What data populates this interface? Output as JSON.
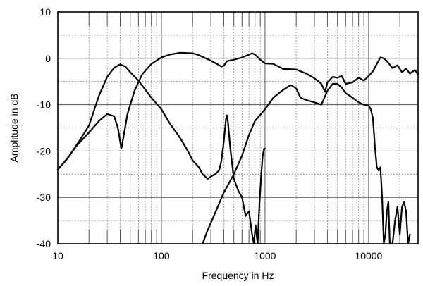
{
  "chart_data": {
    "type": "line",
    "title": "",
    "xlabel": "Frequency in Hz",
    "ylabel": "Amplitude in dB",
    "x_scale": "log",
    "xlim": [
      10,
      30000
    ],
    "ylim": [
      -40,
      10
    ],
    "x_ticks": [
      10,
      100,
      1000,
      10000
    ],
    "x_tick_labels": [
      "10",
      "100",
      "1000",
      "10000"
    ],
    "y_ticks": [
      10,
      0,
      -10,
      -20,
      -30,
      -40
    ],
    "y_tick_labels": [
      "10",
      "0",
      "-10",
      "-20",
      "-30",
      "-40"
    ],
    "grid": true,
    "legend": "none",
    "series": [
      {
        "points": [
          [
            10,
            -24
          ],
          [
            12,
            -22
          ],
          [
            15,
            -19
          ],
          [
            20,
            -16
          ],
          [
            25,
            -13.5
          ],
          [
            30,
            -12
          ],
          [
            35,
            -12.5
          ],
          [
            38,
            -15
          ],
          [
            40,
            -18
          ],
          [
            41,
            -19.5
          ],
          [
            43,
            -17
          ],
          [
            47,
            -12
          ],
          [
            55,
            -7
          ],
          [
            65,
            -3.5
          ],
          [
            80,
            -1.2
          ],
          [
            100,
            0.2
          ],
          [
            120,
            0.8
          ],
          [
            150,
            1.2
          ],
          [
            200,
            1.1
          ],
          [
            230,
            0.7
          ],
          [
            300,
            -0.5
          ],
          [
            350,
            -1.3
          ],
          [
            380,
            -1.8
          ],
          [
            400,
            -1.6
          ],
          [
            430,
            -0.6
          ],
          [
            500,
            -0.3
          ],
          [
            600,
            0.2
          ],
          [
            700,
            0.8
          ],
          [
            750,
            1.1
          ],
          [
            800,
            0.8
          ],
          [
            900,
            -0.3
          ],
          [
            1000,
            -1.1
          ],
          [
            1200,
            -1.2
          ],
          [
            1500,
            -2.3
          ],
          [
            2000,
            -2.4
          ],
          [
            2500,
            -3.3
          ],
          [
            3000,
            -4.3
          ],
          [
            3500,
            -5.5
          ],
          [
            3800,
            -7.2
          ],
          [
            4000,
            -5.2
          ],
          [
            4500,
            -4
          ],
          [
            5000,
            -4.2
          ],
          [
            5500,
            -3.8
          ],
          [
            6000,
            -5.5
          ],
          [
            7000,
            -5.2
          ],
          [
            8000,
            -4.2
          ],
          [
            9000,
            -4.8
          ],
          [
            10000,
            -3.8
          ],
          [
            11000,
            -2.8
          ],
          [
            12000,
            -1.2
          ],
          [
            13000,
            0.2
          ],
          [
            14000,
            0
          ],
          [
            15000,
            -0.6
          ],
          [
            17000,
            -2.1
          ],
          [
            19000,
            -1.5
          ],
          [
            21000,
            -3
          ],
          [
            23000,
            -2.2
          ],
          [
            25000,
            -3.3
          ],
          [
            28000,
            -2.5
          ],
          [
            30000,
            -3.5
          ]
        ]
      },
      {
        "points": [
          [
            10,
            -24
          ],
          [
            13,
            -21
          ],
          [
            17,
            -17
          ],
          [
            20,
            -14.5
          ],
          [
            25,
            -8
          ],
          [
            30,
            -4
          ],
          [
            35,
            -2
          ],
          [
            40,
            -1.3
          ],
          [
            45,
            -1.8
          ],
          [
            50,
            -3
          ],
          [
            60,
            -4.8
          ],
          [
            80,
            -8.5
          ],
          [
            100,
            -11
          ],
          [
            120,
            -14
          ],
          [
            150,
            -17
          ],
          [
            180,
            -20
          ],
          [
            200,
            -22
          ],
          [
            230,
            -23.5
          ],
          [
            250,
            -25
          ],
          [
            280,
            -26
          ],
          [
            300,
            -25.5
          ],
          [
            330,
            -25
          ],
          [
            360,
            -24.2
          ],
          [
            380,
            -22
          ],
          [
            400,
            -18
          ],
          [
            420,
            -13
          ],
          [
            430,
            -12.3
          ],
          [
            440,
            -14
          ],
          [
            460,
            -19
          ],
          [
            500,
            -26
          ],
          [
            550,
            -28.5
          ],
          [
            600,
            -30
          ],
          [
            650,
            -34
          ],
          [
            700,
            -33
          ],
          [
            750,
            -38
          ],
          [
            780,
            -40
          ],
          [
            810,
            -36
          ],
          [
            850,
            -40
          ],
          [
            880,
            -32
          ],
          [
            920,
            -25
          ],
          [
            950,
            -21
          ],
          [
            980,
            -19.5
          ],
          [
            1000,
            -19.5
          ]
        ]
      },
      {
        "points": [
          [
            250,
            -40
          ],
          [
            280,
            -37
          ],
          [
            300,
            -35.5
          ],
          [
            350,
            -32
          ],
          [
            400,
            -29
          ],
          [
            500,
            -25
          ],
          [
            600,
            -21
          ],
          [
            700,
            -16.5
          ],
          [
            800,
            -13.5
          ],
          [
            1000,
            -11
          ],
          [
            1200,
            -8.5
          ],
          [
            1500,
            -6.8
          ],
          [
            1700,
            -6
          ],
          [
            1800,
            -5.8
          ],
          [
            2000,
            -6.5
          ],
          [
            2200,
            -8.5
          ],
          [
            2500,
            -9
          ],
          [
            3000,
            -9.5
          ],
          [
            3500,
            -10
          ],
          [
            4000,
            -7
          ],
          [
            4500,
            -5.5
          ],
          [
            5000,
            -5.5
          ],
          [
            5500,
            -6.3
          ],
          [
            6000,
            -7.5
          ],
          [
            7000,
            -8.5
          ],
          [
            8000,
            -9.5
          ],
          [
            9000,
            -10
          ],
          [
            10000,
            -10.2
          ],
          [
            10500,
            -11
          ],
          [
            11000,
            -13
          ],
          [
            11500,
            -19
          ],
          [
            12000,
            -23.5
          ],
          [
            12500,
            -24.2
          ],
          [
            13000,
            -23.5
          ],
          [
            13500,
            -30
          ],
          [
            14000,
            -40
          ],
          [
            14500,
            -38
          ],
          [
            15000,
            -33
          ],
          [
            15500,
            -31
          ],
          [
            16000,
            -40
          ],
          [
            17000,
            -40
          ],
          [
            18000,
            -35
          ],
          [
            19000,
            -32
          ],
          [
            20000,
            -38
          ],
          [
            21000,
            -32
          ],
          [
            22000,
            -31
          ],
          [
            23000,
            -33
          ],
          [
            24000,
            -40
          ],
          [
            25000,
            -38
          ]
        ]
      }
    ]
  }
}
